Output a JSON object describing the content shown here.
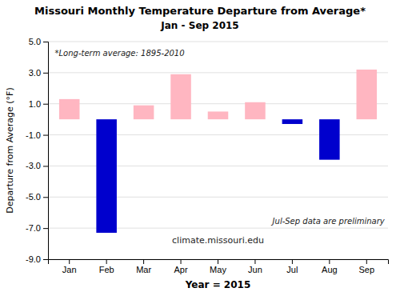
{
  "chart_data": {
    "type": "bar",
    "title": "Missouri Monthly Temperature Departure from Average*",
    "subtitle": "Jan - Sep 2015",
    "xlabel": "Year = 2015",
    "ylabel": "Departure from Average (°F)",
    "categories": [
      "Jan",
      "Feb",
      "Mar",
      "Apr",
      "May",
      "Jun",
      "Jul",
      "Aug",
      "Sep"
    ],
    "values": [
      1.3,
      -7.3,
      0.9,
      2.9,
      0.5,
      1.1,
      -0.3,
      -2.6,
      3.2
    ],
    "colors": [
      "#FFB6C1",
      "#0000CD",
      "#FFB6C1",
      "#FFB6C1",
      "#FFB6C1",
      "#FFB6C1",
      "#0000CD",
      "#0000CD",
      "#FFB6C1"
    ],
    "ylim": [
      -9.0,
      5.0
    ],
    "yticks": [
      {
        "value": -9.0,
        "label": "-9.0"
      },
      {
        "value": -7.0,
        "label": "-7.0"
      },
      {
        "value": -5.0,
        "label": "-5.0"
      },
      {
        "value": -3.0,
        "label": "-3.0"
      },
      {
        "value": -1.0,
        "label": "-1.0"
      },
      {
        "value": 1.0,
        "label": "1.0"
      },
      {
        "value": 3.0,
        "label": "3.0"
      },
      {
        "value": 5.0,
        "label": "5.0"
      }
    ],
    "grid": true,
    "annotations": [
      "*Long-term average: 1895-2010",
      "Jul-Sep data are preliminary",
      "climate.missouri.edu"
    ]
  }
}
